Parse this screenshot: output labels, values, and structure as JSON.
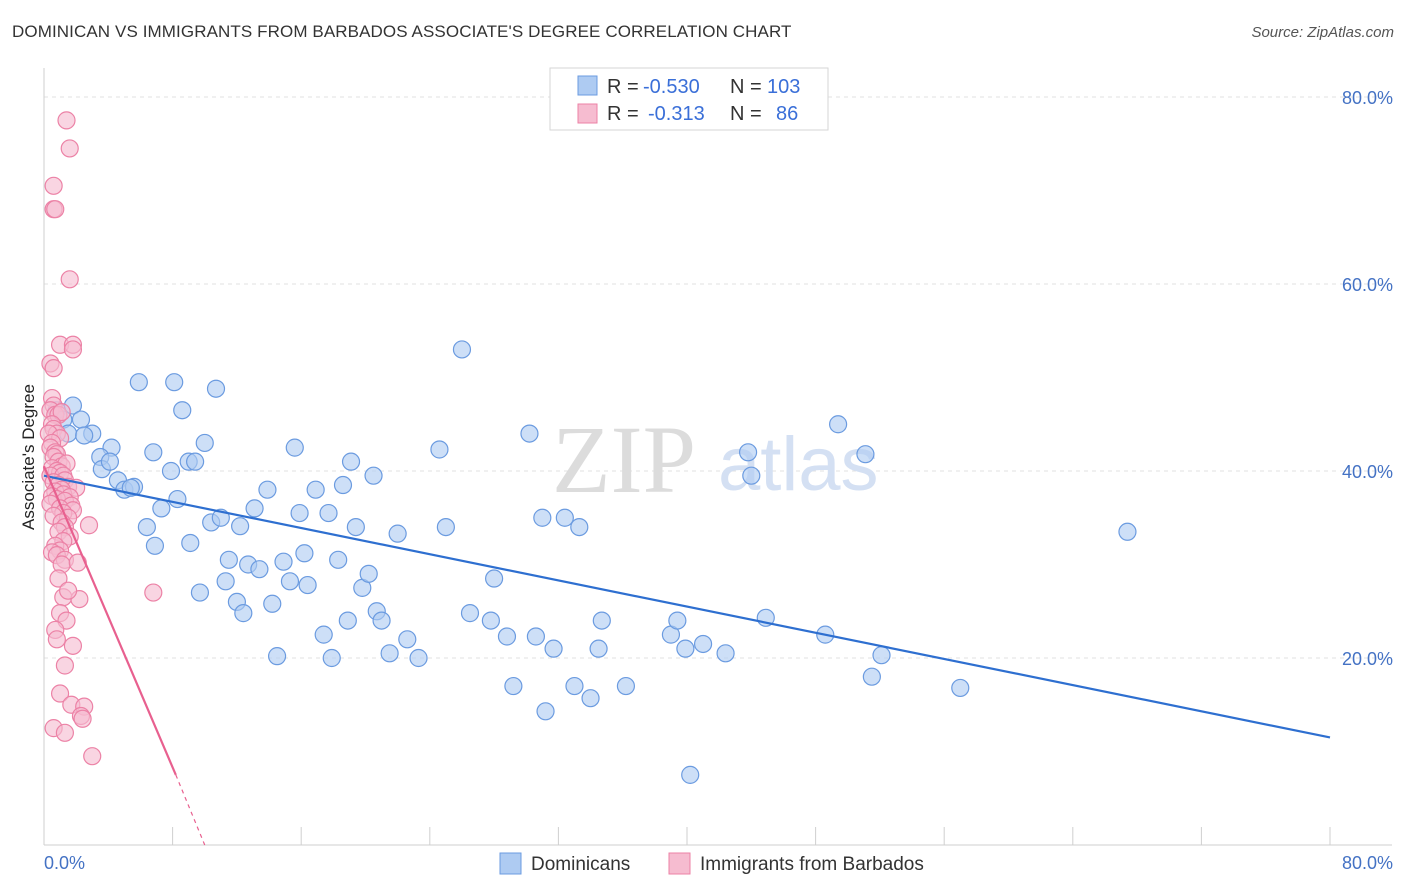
{
  "title": "DOMINICAN VS IMMIGRANTS FROM BARBADOS ASSOCIATE'S DEGREE CORRELATION CHART",
  "source": "Source: ZipAtlas.com",
  "watermark": {
    "zip": "ZIP",
    "atlas": "atlas"
  },
  "colors": {
    "blue_fill": "#aecbf2",
    "blue_stroke": "#6b9be0",
    "blue_line": "#2e6fd0",
    "pink_fill": "#f6bcd0",
    "pink_stroke": "#ec82a6",
    "pink_line": "#e8608f",
    "grid": "#e2e2e2",
    "tick_text": "#4472c4"
  },
  "legend": {
    "rows": [
      {
        "series": "Dominicans",
        "r_label": "R =",
        "r_value": "-0.530",
        "n_label": "N =",
        "n_value": "103"
      },
      {
        "series": "Immigrants from Barbados",
        "r_label": "R =",
        "r_value": "-0.313",
        "n_label": "N =",
        "n_value": "86"
      }
    ]
  },
  "chart_data": {
    "type": "scatter",
    "title": "DOMINICAN VS IMMIGRANTS FROM BARBADOS ASSOCIATE'S DEGREE CORRELATION CHART",
    "xlabel": "",
    "ylabel": "Associate's Degree",
    "xlim": [
      0,
      80
    ],
    "ylim": [
      0,
      82
    ],
    "x_tick_labels": [
      "0.0%",
      "80.0%"
    ],
    "y_ticks": [
      20,
      40,
      60,
      80
    ],
    "y_tick_labels": [
      "20.0%",
      "40.0%",
      "60.0%",
      "80.0%"
    ],
    "grid": true,
    "legend_position": "top-center and bottom",
    "series": [
      {
        "name": "Dominicans",
        "color": "#aecbf2",
        "trend": {
          "x": [
            0,
            80
          ],
          "y": [
            39.5,
            11.5
          ]
        },
        "points": [
          [
            0.8,
            46.5
          ],
          [
            1.2,
            45.5
          ],
          [
            1.8,
            47
          ],
          [
            2.3,
            45.5
          ],
          [
            1.5,
            44
          ],
          [
            3,
            44
          ],
          [
            4.2,
            42.5
          ],
          [
            3.5,
            41.5
          ],
          [
            3.6,
            40.2
          ],
          [
            4.1,
            41
          ],
          [
            4.6,
            39
          ],
          [
            5,
            38
          ],
          [
            5.6,
            38.3
          ],
          [
            5.9,
            49.5
          ],
          [
            6.4,
            34
          ],
          [
            6.9,
            32
          ],
          [
            6.8,
            42
          ],
          [
            7.3,
            36
          ],
          [
            7.9,
            40
          ],
          [
            8.1,
            49.5
          ],
          [
            8.3,
            37
          ],
          [
            8.6,
            46.5
          ],
          [
            9.0,
            41
          ],
          [
            9.4,
            41
          ],
          [
            9.7,
            27
          ],
          [
            10,
            43
          ],
          [
            10.4,
            34.5
          ],
          [
            10.7,
            48.8
          ],
          [
            11,
            35
          ],
          [
            11.3,
            28.2
          ],
          [
            11.5,
            30.5
          ],
          [
            12,
            26
          ],
          [
            12.4,
            24.8
          ],
          [
            12.7,
            30
          ],
          [
            13.1,
            36
          ],
          [
            13.4,
            29.5
          ],
          [
            13.9,
            38
          ],
          [
            14.2,
            25.8
          ],
          [
            14.5,
            20.2
          ],
          [
            14.9,
            30.3
          ],
          [
            15.3,
            28.2
          ],
          [
            15.6,
            42.5
          ],
          [
            15.9,
            35.5
          ],
          [
            16.4,
            27.8
          ],
          [
            16.9,
            38
          ],
          [
            17.4,
            22.5
          ],
          [
            17.7,
            35.5
          ],
          [
            17.9,
            20
          ],
          [
            18.3,
            30.5
          ],
          [
            18.6,
            38.5
          ],
          [
            18.9,
            24
          ],
          [
            19.1,
            41
          ],
          [
            19.4,
            34
          ],
          [
            19.8,
            27.5
          ],
          [
            20.2,
            29
          ],
          [
            20.5,
            39.5
          ],
          [
            20.7,
            25
          ],
          [
            21,
            24
          ],
          [
            21.5,
            20.5
          ],
          [
            22,
            33.3
          ],
          [
            22.6,
            22
          ],
          [
            23.3,
            20
          ],
          [
            24.6,
            42.3
          ],
          [
            25,
            34
          ],
          [
            26,
            53
          ],
          [
            26.5,
            24.8
          ],
          [
            27.8,
            24
          ],
          [
            28,
            28.5
          ],
          [
            28.8,
            22.3
          ],
          [
            29.2,
            17
          ],
          [
            30.2,
            44
          ],
          [
            30.6,
            22.3
          ],
          [
            31,
            35
          ],
          [
            31.2,
            14.3
          ],
          [
            31.7,
            21
          ],
          [
            32.4,
            35
          ],
          [
            33,
            17
          ],
          [
            33.3,
            34
          ],
          [
            34,
            15.7
          ],
          [
            34.5,
            21
          ],
          [
            34.7,
            24
          ],
          [
            36.2,
            17
          ],
          [
            39,
            22.5
          ],
          [
            39.4,
            24
          ],
          [
            39.9,
            21
          ],
          [
            40.2,
            7.5
          ],
          [
            41,
            21.5
          ],
          [
            42.4,
            20.5
          ],
          [
            43.8,
            42
          ],
          [
            44,
            39.5
          ],
          [
            44.9,
            24.3
          ],
          [
            48.6,
            22.5
          ],
          [
            49.4,
            45
          ],
          [
            51.1,
            41.8
          ],
          [
            51.5,
            18
          ],
          [
            52.1,
            20.3
          ],
          [
            57,
            16.8
          ],
          [
            67.4,
            33.5
          ],
          [
            5.4,
            38.2
          ],
          [
            9.1,
            32.3
          ],
          [
            12.2,
            34.1
          ],
          [
            2.5,
            43.8
          ],
          [
            16.2,
            31.2
          ]
        ]
      },
      {
        "name": "Immigrants from Barbados",
        "color": "#f6bcd0",
        "trend": {
          "x": [
            0,
            8.2
          ],
          "y": [
            40.5,
            7.5
          ],
          "dashed_extension": {
            "x": [
              8.2,
              10
            ],
            "y": [
              7.5,
              0
            ]
          }
        },
        "points": [
          [
            1.4,
            77.5
          ],
          [
            1.6,
            74.5
          ],
          [
            0.6,
            70.5
          ],
          [
            0.6,
            68
          ],
          [
            0.7,
            68
          ],
          [
            1.6,
            60.5
          ],
          [
            1.0,
            53.5
          ],
          [
            1.8,
            53.5
          ],
          [
            1.8,
            53
          ],
          [
            0.4,
            51.5
          ],
          [
            0.6,
            51
          ],
          [
            0.5,
            47.8
          ],
          [
            0.6,
            47
          ],
          [
            0.4,
            46.5
          ],
          [
            0.7,
            46
          ],
          [
            0.9,
            46
          ],
          [
            1.1,
            46.3
          ],
          [
            0.5,
            45
          ],
          [
            0.6,
            44.5
          ],
          [
            0.8,
            44
          ],
          [
            0.3,
            44
          ],
          [
            1.0,
            43.5
          ],
          [
            0.5,
            43
          ],
          [
            0.4,
            42.5
          ],
          [
            0.7,
            42
          ],
          [
            0.8,
            41.8
          ],
          [
            0.6,
            41.5
          ],
          [
            0.9,
            41
          ],
          [
            1.1,
            40.5
          ],
          [
            1.4,
            40.8
          ],
          [
            0.5,
            40.3
          ],
          [
            0.8,
            40
          ],
          [
            1.0,
            39.8
          ],
          [
            0.4,
            39.5
          ],
          [
            1.2,
            39.5
          ],
          [
            1.3,
            39
          ],
          [
            0.6,
            38.8
          ],
          [
            0.9,
            38.5
          ],
          [
            1.5,
            38.3
          ],
          [
            2.0,
            38.2
          ],
          [
            1.1,
            38
          ],
          [
            0.7,
            37.8
          ],
          [
            1.2,
            37.5
          ],
          [
            0.5,
            37.3
          ],
          [
            1.6,
            37.2
          ],
          [
            0.8,
            37
          ],
          [
            1.3,
            36.8
          ],
          [
            0.4,
            36.5
          ],
          [
            1.7,
            36.3
          ],
          [
            1.0,
            36
          ],
          [
            1.8,
            35.8
          ],
          [
            1.2,
            35.5
          ],
          [
            0.6,
            35.2
          ],
          [
            1.5,
            35
          ],
          [
            1.1,
            34.5
          ],
          [
            2.8,
            34.2
          ],
          [
            1.3,
            34
          ],
          [
            0.9,
            33.5
          ],
          [
            1.6,
            33
          ],
          [
            1.2,
            32.5
          ],
          [
            0.7,
            32
          ],
          [
            1.0,
            31.5
          ],
          [
            0.5,
            31.3
          ],
          [
            0.8,
            31
          ],
          [
            1.3,
            30.5
          ],
          [
            1.1,
            30
          ],
          [
            6.8,
            27
          ],
          [
            1.2,
            26.5
          ],
          [
            1.0,
            24.8
          ],
          [
            1.4,
            24
          ],
          [
            0.7,
            23
          ],
          [
            0.8,
            22
          ],
          [
            1.3,
            19.2
          ],
          [
            1.0,
            16.2
          ],
          [
            1.7,
            15
          ],
          [
            2.5,
            14.8
          ],
          [
            2.3,
            13.8
          ],
          [
            2.4,
            13.5
          ],
          [
            0.6,
            12.5
          ],
          [
            1.3,
            12
          ],
          [
            3.0,
            9.5
          ],
          [
            2.2,
            26.3
          ],
          [
            1.8,
            21.3
          ],
          [
            0.9,
            28.5
          ],
          [
            2.1,
            30.2
          ],
          [
            1.5,
            27.2
          ]
        ]
      }
    ]
  }
}
